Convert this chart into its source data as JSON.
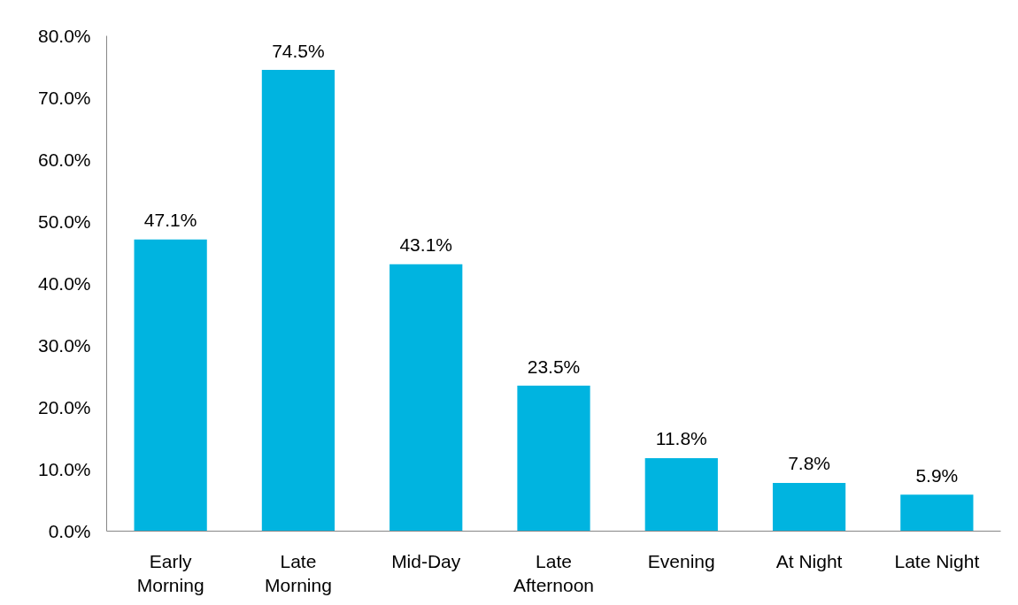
{
  "chart_data": {
    "type": "bar",
    "categories": [
      "Early\nMorning",
      "Late\nMorning",
      "Mid-Day",
      "Late\nAfternoon",
      "Evening",
      "At Night",
      "Late Night"
    ],
    "values": [
      47.1,
      74.5,
      43.1,
      23.5,
      11.8,
      7.8,
      5.9
    ],
    "value_labels": [
      "47.1%",
      "74.5%",
      "43.1%",
      "23.5%",
      "11.8%",
      "7.8%",
      "5.9%"
    ],
    "color": "#00b4e0",
    "ylim": [
      0,
      80
    ],
    "yticks": [
      {
        "value": 0,
        "label": "0.0%"
      },
      {
        "value": 10,
        "label": "10.0%"
      },
      {
        "value": 20,
        "label": "20.0%"
      },
      {
        "value": 30,
        "label": "30.0%"
      },
      {
        "value": 40,
        "label": "40.0%"
      },
      {
        "value": 50,
        "label": "50.0%"
      },
      {
        "value": 60,
        "label": "60.0%"
      },
      {
        "value": 70,
        "label": "70.0%"
      },
      {
        "value": 80,
        "label": "80.0%"
      }
    ],
    "grid": false
  }
}
